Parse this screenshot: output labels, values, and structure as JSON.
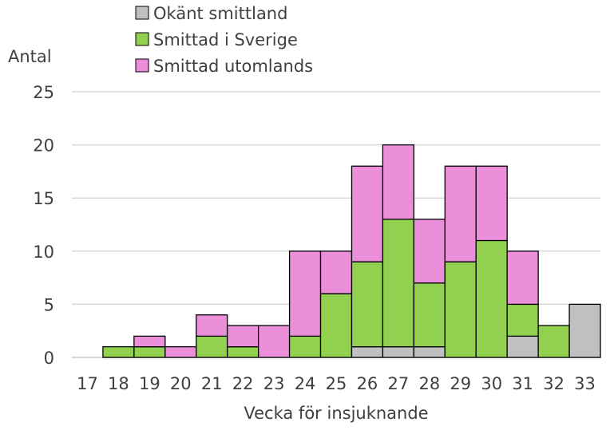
{
  "chart_data": {
    "type": "bar",
    "stacked": true,
    "title": "",
    "xlabel": "Vecka för insjuknande",
    "ylabel": "Antal",
    "ylim": [
      0,
      25
    ],
    "yticks": [
      0,
      5,
      10,
      15,
      20,
      25
    ],
    "grid": true,
    "legend_position": "top",
    "categories": [
      "17",
      "18",
      "19",
      "20",
      "21",
      "22",
      "23",
      "24",
      "25",
      "26",
      "27",
      "28",
      "29",
      "30",
      "31",
      "32",
      "33"
    ],
    "series": [
      {
        "name": "Okänt smittland",
        "color": "#c0c0c0",
        "values": [
          0,
          0,
          0,
          0,
          0,
          0,
          0,
          0,
          0,
          1,
          1,
          1,
          0,
          0,
          2,
          0,
          5
        ]
      },
      {
        "name": "Smittad i Sverige",
        "color": "#92d050",
        "values": [
          0,
          1,
          1,
          0,
          2,
          1,
          0,
          2,
          6,
          8,
          12,
          6,
          9,
          11,
          3,
          3,
          0
        ]
      },
      {
        "name": "Smittad utomlands",
        "color": "#ec8fdb",
        "values": [
          0,
          0,
          1,
          1,
          2,
          2,
          3,
          8,
          4,
          9,
          7,
          6,
          9,
          7,
          5,
          0,
          0
        ]
      }
    ]
  }
}
